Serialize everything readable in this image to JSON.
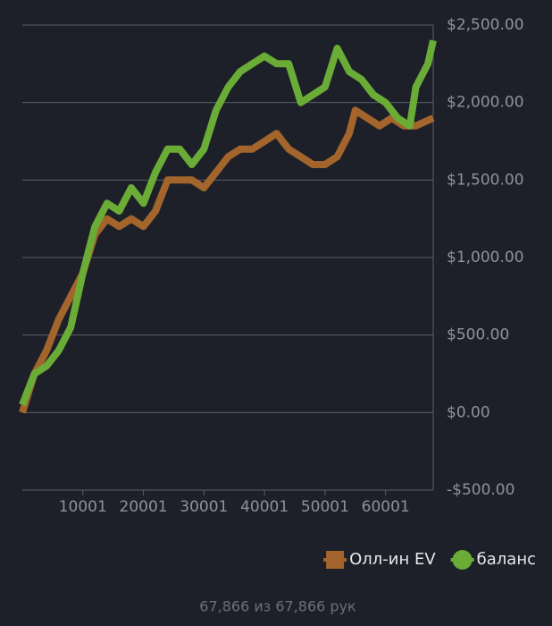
{
  "chart_data": {
    "type": "line",
    "xlim": [
      1,
      67866
    ],
    "ylim": [
      -500,
      2500
    ],
    "xticks": [
      10001,
      20001,
      30001,
      40001,
      50001,
      60001
    ],
    "yticks": [
      {
        "value": -500,
        "label": "-$500.00"
      },
      {
        "value": 0,
        "label": "$0.00"
      },
      {
        "value": 500,
        "label": "$500.00"
      },
      {
        "value": 1000,
        "label": "$1,000.00"
      },
      {
        "value": 1500,
        "label": "$1,500.00"
      },
      {
        "value": 2000,
        "label": "$2,000.00"
      },
      {
        "value": 2500,
        "label": "$2,500.00"
      }
    ],
    "grid": true,
    "legend": "bottom-right",
    "series": [
      {
        "name": "Олл-ин EV",
        "color": "#a3652b",
        "marker": "square",
        "x": [
          1,
          2000,
          4000,
          6000,
          8000,
          10000,
          12000,
          14000,
          16000,
          18000,
          20000,
          22000,
          24000,
          26000,
          28000,
          30000,
          32000,
          34000,
          36000,
          38000,
          40000,
          42000,
          44000,
          46000,
          48000,
          50000,
          52000,
          54000,
          55000,
          57000,
          59000,
          61000,
          63000,
          65000,
          67866
        ],
        "values": [
          0,
          250,
          400,
          600,
          750,
          900,
          1150,
          1250,
          1200,
          1250,
          1200,
          1300,
          1500,
          1500,
          1500,
          1450,
          1550,
          1650,
          1700,
          1700,
          1750,
          1800,
          1700,
          1650,
          1600,
          1600,
          1650,
          1800,
          1950,
          1900,
          1850,
          1900,
          1850,
          1850,
          1900
        ]
      },
      {
        "name": "баланс",
        "color": "#6aac36",
        "marker": "circle",
        "x": [
          1,
          2000,
          4000,
          6000,
          8000,
          10000,
          12000,
          14000,
          16000,
          18000,
          20000,
          22000,
          24000,
          26000,
          28000,
          30000,
          32000,
          34000,
          36000,
          38000,
          40000,
          42000,
          44000,
          46000,
          48000,
          50000,
          52000,
          54000,
          56000,
          58000,
          60000,
          62000,
          64000,
          65000,
          67000,
          67866
        ],
        "values": [
          50,
          250,
          300,
          400,
          550,
          900,
          1200,
          1350,
          1300,
          1450,
          1350,
          1550,
          1700,
          1700,
          1600,
          1700,
          1950,
          2100,
          2200,
          2250,
          2300,
          2250,
          2250,
          2000,
          2050,
          2100,
          2350,
          2200,
          2150,
          2050,
          2000,
          1900,
          1850,
          2100,
          2250,
          2400
        ]
      }
    ]
  },
  "footer": "67,866 из 67,866 рук"
}
